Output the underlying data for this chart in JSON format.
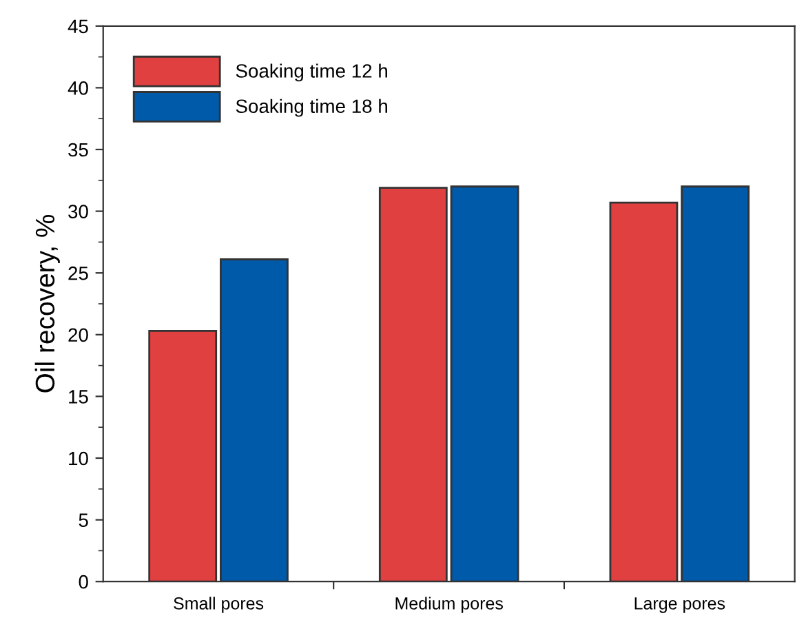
{
  "chart_data": {
    "type": "bar",
    "ylabel": "Oil recovery, %",
    "categories": [
      "Small pores",
      "Medium pores",
      "Large pores"
    ],
    "series": [
      {
        "name": "Soaking time 12 h",
        "color": "#e04040",
        "values": [
          20.3,
          31.9,
          30.7
        ]
      },
      {
        "name": "Soaking time 18 h",
        "color": "#005aaa",
        "values": [
          26.1,
          32.0,
          32.0
        ]
      }
    ],
    "ylim": [
      0,
      45
    ],
    "yticks": [
      0,
      5,
      10,
      15,
      20,
      25,
      30,
      35,
      40,
      45
    ],
    "grid": false,
    "legend": "top left"
  }
}
